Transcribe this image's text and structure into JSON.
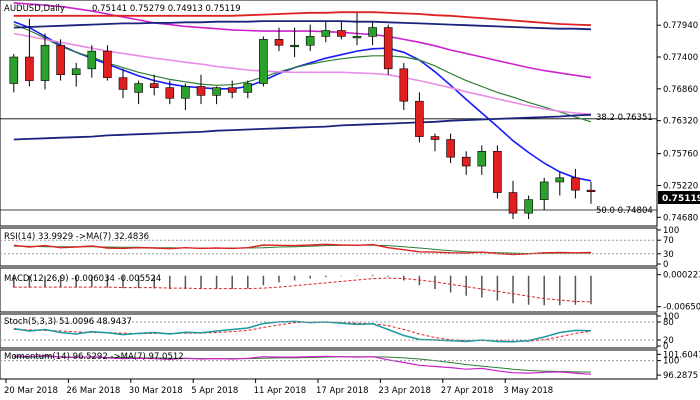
{
  "main": {
    "title": "AUDUSD,Daily",
    "ohlc": "0.75141 0.75279 0.74913 0.75119",
    "current_price": "0.75119",
    "fib_50_label": "50.0  0.74804",
    "fib_382_label": "38.2  0.76351",
    "price_axis": [
      "0.77940",
      "0.77400",
      "0.76860",
      "0.76320",
      "0.75760",
      "0.75220",
      "0.74680"
    ]
  },
  "rsi": {
    "label": "RSI(14) 33.9929  ->MA(7) 32.4836",
    "axis": [
      "100",
      "70",
      "30",
      "0"
    ]
  },
  "macd": {
    "label": "MACD(12,26,9) -0.006034 -0.005524",
    "axis": [
      "0.000223",
      "-0.006508"
    ]
  },
  "stoch": {
    "label": "Stoch(5,3,3) 51.0096 48.9437",
    "axis": [
      "100",
      "80",
      "20",
      "0"
    ]
  },
  "momentum": {
    "label": "Momentum(14) 96.5292  ->MA(7) 97.0512",
    "axis": [
      "101.6041",
      "100",
      "96.2875"
    ]
  },
  "dates": [
    "20 Mar 2018",
    "26 Mar 2018",
    "30 Mar 2018",
    "5 Apr 2018",
    "11 Apr 2018",
    "17 Apr 2018",
    "23 Apr 2018",
    "27 Apr 2018",
    "3 May 2018"
  ],
  "colors": {
    "bull": "#2ca02c",
    "bear": "#e02020",
    "ma_blue": "#1a1aff",
    "ma_navy": "#1a237e",
    "ma_red": "#dd2222",
    "ma_magenta": "#cc22cc",
    "ma_pink": "#e88ce8",
    "ma_green": "#2e7d32"
  },
  "chart_data": {
    "type": "candlestick",
    "symbol": "AUDUSD",
    "timeframe": "Daily",
    "ylim": [
      0.746,
      0.783
    ],
    "candles": [
      {
        "o": 0.7695,
        "h": 0.7745,
        "l": 0.768,
        "c": 0.774
      },
      {
        "o": 0.774,
        "h": 0.7805,
        "l": 0.769,
        "c": 0.77
      },
      {
        "o": 0.77,
        "h": 0.778,
        "l": 0.7685,
        "c": 0.776
      },
      {
        "o": 0.776,
        "h": 0.777,
        "l": 0.77,
        "c": 0.771
      },
      {
        "o": 0.771,
        "h": 0.773,
        "l": 0.769,
        "c": 0.772
      },
      {
        "o": 0.772,
        "h": 0.776,
        "l": 0.7705,
        "c": 0.775
      },
      {
        "o": 0.775,
        "h": 0.776,
        "l": 0.77,
        "c": 0.7705
      },
      {
        "o": 0.7705,
        "h": 0.772,
        "l": 0.767,
        "c": 0.7685
      },
      {
        "o": 0.768,
        "h": 0.77,
        "l": 0.766,
        "c": 0.7695
      },
      {
        "o": 0.7695,
        "h": 0.771,
        "l": 0.7675,
        "c": 0.7688
      },
      {
        "o": 0.7688,
        "h": 0.77,
        "l": 0.766,
        "c": 0.767
      },
      {
        "o": 0.767,
        "h": 0.7695,
        "l": 0.765,
        "c": 0.769
      },
      {
        "o": 0.769,
        "h": 0.771,
        "l": 0.766,
        "c": 0.7675
      },
      {
        "o": 0.7675,
        "h": 0.769,
        "l": 0.766,
        "c": 0.7688
      },
      {
        "o": 0.7688,
        "h": 0.77,
        "l": 0.767,
        "c": 0.768
      },
      {
        "o": 0.768,
        "h": 0.77,
        "l": 0.767,
        "c": 0.7695
      },
      {
        "o": 0.7695,
        "h": 0.7775,
        "l": 0.769,
        "c": 0.777
      },
      {
        "o": 0.777,
        "h": 0.779,
        "l": 0.775,
        "c": 0.776
      },
      {
        "o": 0.776,
        "h": 0.779,
        "l": 0.774,
        "c": 0.776
      },
      {
        "o": 0.776,
        "h": 0.7795,
        "l": 0.775,
        "c": 0.7775
      },
      {
        "o": 0.7775,
        "h": 0.78,
        "l": 0.7765,
        "c": 0.7785
      },
      {
        "o": 0.7785,
        "h": 0.78,
        "l": 0.777,
        "c": 0.7775
      },
      {
        "o": 0.7775,
        "h": 0.7815,
        "l": 0.776,
        "c": 0.7775
      },
      {
        "o": 0.7775,
        "h": 0.78,
        "l": 0.776,
        "c": 0.779
      },
      {
        "o": 0.779,
        "h": 0.7795,
        "l": 0.771,
        "c": 0.772
      },
      {
        "o": 0.772,
        "h": 0.773,
        "l": 0.765,
        "c": 0.7665
      },
      {
        "o": 0.7665,
        "h": 0.768,
        "l": 0.7595,
        "c": 0.7605
      },
      {
        "o": 0.7605,
        "h": 0.761,
        "l": 0.758,
        "c": 0.76
      },
      {
        "o": 0.76,
        "h": 0.761,
        "l": 0.756,
        "c": 0.757
      },
      {
        "o": 0.757,
        "h": 0.758,
        "l": 0.754,
        "c": 0.7555
      },
      {
        "o": 0.7555,
        "h": 0.759,
        "l": 0.754,
        "c": 0.758
      },
      {
        "o": 0.758,
        "h": 0.759,
        "l": 0.75,
        "c": 0.751
      },
      {
        "o": 0.751,
        "h": 0.753,
        "l": 0.7465,
        "c": 0.7475
      },
      {
        "o": 0.7475,
        "h": 0.7505,
        "l": 0.7465,
        "c": 0.7498
      },
      {
        "o": 0.7498,
        "h": 0.7535,
        "l": 0.748,
        "c": 0.7528
      },
      {
        "o": 0.7528,
        "h": 0.7545,
        "l": 0.7505,
        "c": 0.7535
      },
      {
        "o": 0.7535,
        "h": 0.755,
        "l": 0.75,
        "c": 0.7514
      },
      {
        "o": 0.7514,
        "h": 0.7528,
        "l": 0.7491,
        "c": 0.7512
      }
    ],
    "moving_averages": [
      {
        "color": "blue",
        "values": [
          0.78,
          0.779,
          0.7775,
          0.776,
          0.7748,
          0.7738,
          0.7728,
          0.7718,
          0.7708,
          0.77,
          0.7694,
          0.769,
          0.7688,
          0.7686,
          0.7686,
          0.769,
          0.77,
          0.7712,
          0.7722,
          0.773,
          0.7738,
          0.7744,
          0.775,
          0.7754,
          0.7755,
          0.7748,
          0.7735,
          0.7715,
          0.7692,
          0.7668,
          0.7645,
          0.7622,
          0.7598,
          0.7578,
          0.756,
          0.7545,
          0.7535,
          0.753
        ]
      },
      {
        "color": "green",
        "values": [
          0.7795,
          0.7785,
          0.7772,
          0.7758,
          0.7748,
          0.774,
          0.773,
          0.7722,
          0.7714,
          0.7708,
          0.7702,
          0.7698,
          0.7694,
          0.7692,
          0.7693,
          0.7698,
          0.7706,
          0.7715,
          0.7722,
          0.7728,
          0.7733,
          0.7737,
          0.774,
          0.7742,
          0.7742,
          0.774,
          0.7735,
          0.7725,
          0.7712,
          0.77,
          0.769,
          0.768,
          0.7672,
          0.7663,
          0.7655,
          0.7647,
          0.7638,
          0.763
        ]
      },
      {
        "color": "pink",
        "values": [
          0.778,
          0.7775,
          0.777,
          0.7765,
          0.776,
          0.7755,
          0.775,
          0.7746,
          0.7742,
          0.7738,
          0.7735,
          0.7731,
          0.7728,
          0.7724,
          0.7721,
          0.7718,
          0.7716,
          0.7715,
          0.7714,
          0.7714,
          0.7714,
          0.7714,
          0.7713,
          0.7712,
          0.771,
          0.7705,
          0.77,
          0.7694,
          0.7688,
          0.7681,
          0.7675,
          0.7669,
          0.7663,
          0.7657,
          0.7652,
          0.7648,
          0.7645,
          0.7643
        ]
      },
      {
        "color": "magenta",
        "values": [
          0.7832,
          0.783,
          0.7828,
          0.7826,
          0.7822,
          0.7818,
          0.7813,
          0.7808,
          0.7803,
          0.7798,
          0.7795,
          0.7792,
          0.779,
          0.7788,
          0.7786,
          0.7785,
          0.7784,
          0.7784,
          0.7784,
          0.7784,
          0.7783,
          0.7782,
          0.778,
          0.7778,
          0.7775,
          0.777,
          0.7765,
          0.7759,
          0.7752,
          0.7746,
          0.774,
          0.7734,
          0.7728,
          0.7722,
          0.7717,
          0.7713,
          0.7709,
          0.7705
        ]
      },
      {
        "color": "red",
        "values": [
          0.781,
          0.781,
          0.781,
          0.781,
          0.781,
          0.781,
          0.781,
          0.781,
          0.781,
          0.781,
          0.781,
          0.781,
          0.781,
          0.781,
          0.781,
          0.7811,
          0.7812,
          0.7813,
          0.7814,
          0.7815,
          0.7815,
          0.7816,
          0.7816,
          0.7816,
          0.7815,
          0.7814,
          0.7813,
          0.7811,
          0.781,
          0.7808,
          0.7806,
          0.7804,
          0.7802,
          0.78,
          0.7798,
          0.7796,
          0.7795,
          0.7794
        ]
      },
      {
        "color": "navy",
        "values": [
          0.779,
          0.7791,
          0.7792,
          0.7793,
          0.7794,
          0.7795,
          0.7796,
          0.7797,
          0.7797,
          0.7798,
          0.7798,
          0.7799,
          0.7799,
          0.78,
          0.78,
          0.78,
          0.7801,
          0.7801,
          0.7801,
          0.7801,
          0.7801,
          0.7801,
          0.78,
          0.78,
          0.7799,
          0.7798,
          0.7797,
          0.7796,
          0.7795,
          0.7794,
          0.7793,
          0.7792,
          0.7791,
          0.779,
          0.7789,
          0.7788,
          0.7788,
          0.7787
        ]
      },
      {
        "color": "navy-trend",
        "values": [
          0.76,
          0.7601,
          0.7602,
          0.7603,
          0.7604,
          0.7605,
          0.7607,
          0.7608,
          0.7609,
          0.761,
          0.7611,
          0.7612,
          0.7613,
          0.7615,
          0.7616,
          0.7617,
          0.7618,
          0.7619,
          0.762,
          0.7621,
          0.7622,
          0.7624,
          0.7625,
          0.7626,
          0.7627,
          0.7628,
          0.7629,
          0.763,
          0.7632,
          0.7633,
          0.7634,
          0.7635,
          0.7636,
          0.7637,
          0.7638,
          0.7639,
          0.7641,
          0.7642
        ]
      }
    ],
    "fibonacci": [
      {
        "level": "50.0",
        "value": 0.74804
      },
      {
        "level": "38.2",
        "value": 0.76351
      }
    ],
    "rsi": {
      "ylim": [
        0,
        100
      ],
      "rsi": [
        55,
        50,
        54,
        48,
        50,
        53,
        47,
        46,
        48,
        47,
        45,
        48,
        46,
        47,
        46,
        48,
        56,
        55,
        54,
        56,
        58,
        56,
        55,
        57,
        48,
        42,
        36,
        35,
        33,
        32,
        35,
        31,
        28,
        30,
        33,
        34,
        33,
        34
      ],
      "ma": [
        52,
        52,
        51,
        51,
        51,
        51,
        50,
        49,
        49,
        48,
        48,
        47,
        47,
        47,
        47,
        47,
        48,
        50,
        51,
        52,
        54,
        55,
        56,
        55,
        54,
        51,
        47,
        43,
        39,
        36,
        34,
        33,
        32,
        31,
        31,
        32,
        32,
        32
      ]
    },
    "macd": {
      "ylim": [
        -0.0072,
        0.0012
      ],
      "hist": [
        -0.0025,
        -0.0025,
        -0.0024,
        -0.0024,
        -0.0025,
        -0.0024,
        -0.0025,
        -0.0026,
        -0.0026,
        -0.0027,
        -0.0028,
        -0.0028,
        -0.0028,
        -0.0028,
        -0.0028,
        -0.0027,
        -0.002,
        -0.0014,
        -0.001,
        -0.0006,
        -0.0003,
        -0.0001,
        0.0001,
        0.0002,
        -0.0002,
        -0.001,
        -0.002,
        -0.0028,
        -0.0035,
        -0.0042,
        -0.0046,
        -0.0052,
        -0.0058,
        -0.0061,
        -0.0062,
        -0.0062,
        -0.0061,
        -0.006
      ],
      "signal": [
        -0.0024,
        -0.0024,
        -0.0024,
        -0.0024,
        -0.0024,
        -0.0024,
        -0.0024,
        -0.0025,
        -0.0025,
        -0.0025,
        -0.0026,
        -0.0026,
        -0.0027,
        -0.0027,
        -0.0027,
        -0.0027,
        -0.0026,
        -0.0024,
        -0.0021,
        -0.0018,
        -0.0015,
        -0.0012,
        -0.0009,
        -0.0006,
        -0.0005,
        -0.0006,
        -0.0009,
        -0.0013,
        -0.0018,
        -0.0023,
        -0.0028,
        -0.0033,
        -0.0038,
        -0.0043,
        -0.0048,
        -0.0051,
        -0.0054,
        -0.0055
      ]
    },
    "stoch": {
      "ylim": [
        0,
        100
      ],
      "k": [
        58,
        50,
        55,
        45,
        40,
        48,
        44,
        38,
        42,
        45,
        40,
        46,
        44,
        50,
        55,
        60,
        75,
        80,
        82,
        78,
        80,
        76,
        72,
        74,
        55,
        35,
        22,
        20,
        18,
        15,
        20,
        15,
        14,
        18,
        30,
        45,
        52,
        51
      ],
      "d": [
        55,
        54,
        52,
        50,
        47,
        45,
        44,
        43,
        41,
        42,
        42,
        43,
        43,
        45,
        48,
        52,
        62,
        70,
        78,
        80,
        80,
        78,
        76,
        74,
        68,
        55,
        40,
        28,
        21,
        18,
        18,
        17,
        16,
        16,
        21,
        31,
        42,
        49
      ]
    },
    "momentum": {
      "ylim": [
        95.8,
        102.2
      ],
      "mom": [
        101.2,
        101.0,
        101.3,
        100.9,
        100.8,
        101.0,
        100.7,
        100.5,
        100.6,
        100.5,
        100.3,
        100.6,
        100.4,
        100.5,
        100.4,
        100.6,
        101.0,
        100.9,
        100.9,
        101.0,
        101.1,
        101.0,
        100.9,
        101.0,
        100.2,
        99.5,
        98.8,
        98.5,
        98.2,
        97.8,
        98.0,
        97.4,
        96.9,
        96.8,
        97.0,
        97.1,
        96.8,
        96.5
      ],
      "ma": [
        100.9,
        100.9,
        101.0,
        101.0,
        100.9,
        100.9,
        100.8,
        100.8,
        100.7,
        100.7,
        100.6,
        100.6,
        100.5,
        100.5,
        100.5,
        100.5,
        100.6,
        100.7,
        100.7,
        100.8,
        100.9,
        101.0,
        101.0,
        101.0,
        100.9,
        100.7,
        100.4,
        100.0,
        99.5,
        99.0,
        98.6,
        98.2,
        97.8,
        97.5,
        97.3,
        97.2,
        97.1,
        97.05
      ]
    }
  }
}
